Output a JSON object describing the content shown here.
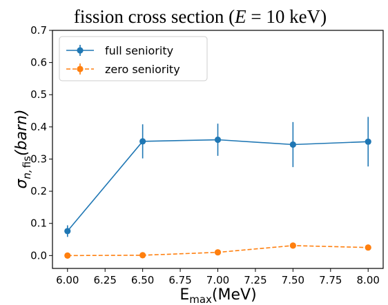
{
  "chart_data": {
    "type": "line",
    "title": {
      "prefix": "fission cross section (",
      "var": "E",
      "suffix": " = 10 keV)"
    },
    "xlabel": {
      "main": "E",
      "sub": "max",
      "unit": "(MeV)"
    },
    "ylabel": {
      "sigma": "σ",
      "sub_n": "n,",
      "sub_fis": "fis",
      "unit": "(barn)"
    },
    "xlim": [
      5.9,
      8.1
    ],
    "ylim": [
      -0.04,
      0.7
    ],
    "xticks": [
      6.0,
      6.25,
      6.5,
      6.75,
      7.0,
      7.25,
      7.5,
      7.75,
      8.0
    ],
    "xtick_labels": [
      "6.00",
      "6.25",
      "6.50",
      "6.75",
      "7.00",
      "7.25",
      "7.50",
      "7.75",
      "8.00"
    ],
    "yticks": [
      0.0,
      0.1,
      0.2,
      0.3,
      0.4,
      0.5,
      0.6,
      0.7
    ],
    "ytick_labels": [
      "0.0",
      "0.1",
      "0.2",
      "0.3",
      "0.4",
      "0.5",
      "0.6",
      "0.7"
    ],
    "legend_position": "top-left",
    "grid": false,
    "series": [
      {
        "name": "full seniority",
        "color": "#1f77b4",
        "linestyle": "solid",
        "x": [
          6.0,
          6.5,
          7.0,
          7.5,
          8.0
        ],
        "y": [
          0.076,
          0.355,
          0.36,
          0.345,
          0.354
        ],
        "yerr": [
          0.018,
          0.053,
          0.05,
          0.07,
          0.077
        ]
      },
      {
        "name": "zero seniority",
        "color": "#ff7f0e",
        "linestyle": "dashed",
        "x": [
          6.0,
          6.5,
          7.0,
          7.5,
          8.0
        ],
        "y": [
          0.0,
          0.001,
          0.01,
          0.031,
          0.025
        ],
        "yerr": [
          0.002,
          0.002,
          0.004,
          0.006,
          0.004
        ]
      }
    ]
  }
}
